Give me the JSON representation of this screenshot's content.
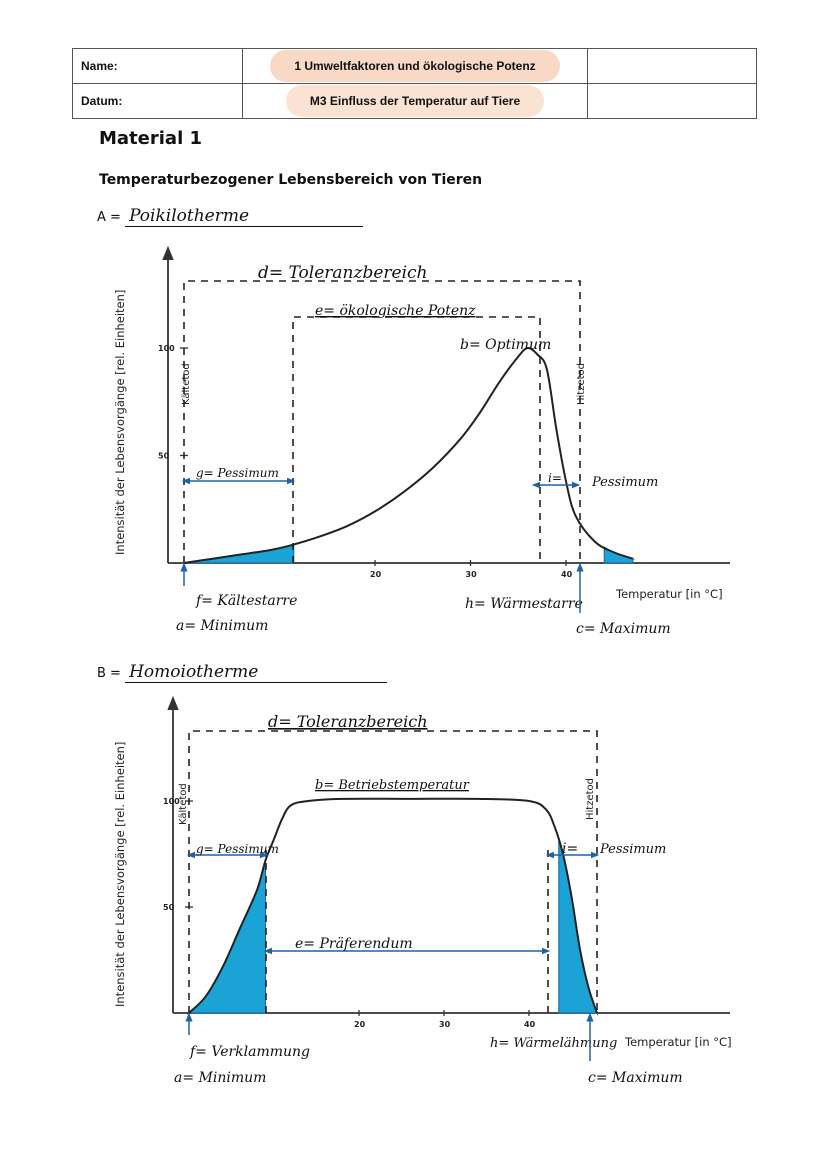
{
  "header": {
    "name_label": "Name:",
    "date_label": "Datum:",
    "topic": "1 Umweltfaktoren und ökologische Potenz",
    "material": "M3 Einfluss der Temperatur auf Tiere"
  },
  "material_title": "Material 1",
  "subtitle": "Temperaturbezogener Lebensbereich von Tieren",
  "section_a": {
    "prefix": "A =",
    "answer": "Poikilotherme"
  },
  "section_b": {
    "prefix": "B =",
    "answer": "Homoiotherme"
  },
  "colors": {
    "fill": "#1aa3d4",
    "curve": "#222222",
    "arrow": "#1f62a8"
  },
  "chart_data": [
    {
      "type": "area",
      "ylabel": "Intensität der Lebensvorgänge  [rel. Einheiten]",
      "xlabel": "Temperatur [in °C]",
      "x_ticks": [
        "20",
        "30",
        "40"
      ],
      "y_ticks": [
        "100",
        "50"
      ],
      "ylim": [
        0,
        120
      ],
      "series": [
        {
          "x": [
            0,
            3,
            6,
            9,
            11,
            14,
            17,
            20,
            23,
            26,
            29,
            31,
            33,
            35,
            36,
            37,
            38,
            39,
            40,
            41,
            43,
            45,
            47
          ],
          "y": [
            0,
            2,
            4,
            6,
            8,
            12,
            17,
            24,
            33,
            44,
            58,
            70,
            84,
            96,
            100,
            97,
            90,
            62,
            38,
            22,
            10,
            5,
            2
          ]
        }
      ],
      "annotations": {
        "d": "d= Toleranzbereich",
        "e": "e= ökologische Potenz",
        "b": "b= Optimum",
        "g": "g= Pessimum",
        "i": "i=",
        "i_text": "Pessimum",
        "f": "f= Kältestarre",
        "a": "a= Minimum",
        "h": "h= Wärmestarre",
        "c": "c= Maximum",
        "cold_death": "Kältetod",
        "heat_death": "Hitzetod"
      }
    },
    {
      "type": "area",
      "ylabel": "Intensität der Lebensvorgänge  [rel. Einheiten]",
      "xlabel": "Temperatur [in °C]",
      "x_ticks": [
        "20",
        "30",
        "40"
      ],
      "y_ticks": [
        "100",
        "50"
      ],
      "ylim": [
        0,
        120
      ],
      "series": [
        {
          "x": [
            0,
            2,
            4,
            6,
            8,
            9,
            10,
            11,
            12,
            14,
            18,
            26,
            34,
            40,
            42,
            43,
            44,
            45,
            46,
            47,
            48
          ],
          "y": [
            0,
            8,
            22,
            40,
            58,
            72,
            82,
            92,
            98,
            100,
            101,
            101,
            101,
            100,
            96,
            88,
            75,
            55,
            30,
            12,
            0
          ]
        }
      ],
      "annotations": {
        "d": "d= Toleranzbereich",
        "b": "b= Betriebstemperatur",
        "g": "g= Pessimum",
        "i": "i=",
        "i_text": "Pessimum",
        "e": "e= Präferendum",
        "f": "f= Verklammung",
        "a": "a= Minimum",
        "h": "h= Wärmelähmung",
        "c": "c= Maximum",
        "cold_death": "Kältetod",
        "heat_death": "Hitzetod"
      }
    }
  ]
}
